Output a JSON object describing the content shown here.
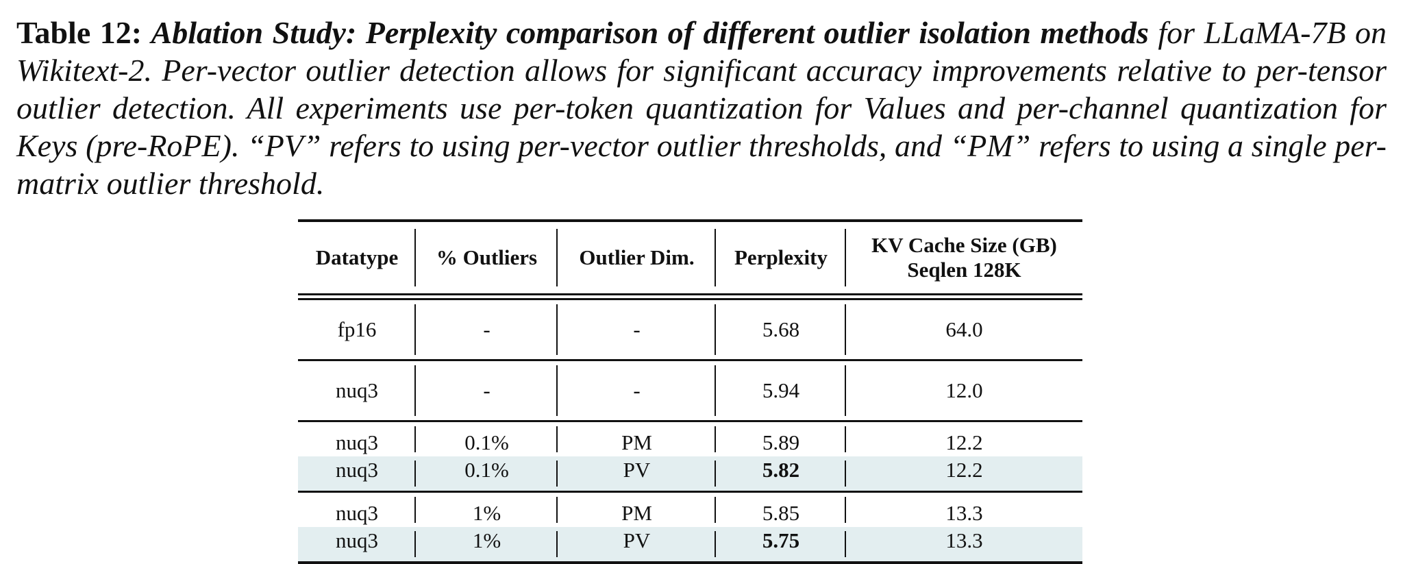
{
  "caption": {
    "label": "Table 12:",
    "title": "Ablation Study: Perplexity comparison of different outlier isolation methods",
    "text": "for LLaMA-7B on Wikitext-2. Per-vector outlier detection allows for significant accuracy improvements relative to per-tensor outlier detection. All experiments use per-token quantization for Values and per-channel quantization for Keys (pre-RoPE). “PV” refers to using per-vector outlier thresholds, and “PM” refers to using a single per-matrix outlier threshold."
  },
  "table": {
    "header": [
      [
        "Datatype"
      ],
      [
        "% Outliers"
      ],
      [
        "Outlier Dim."
      ],
      [
        "Perplexity"
      ],
      [
        "KV Cache Size (GB)",
        "Seqlen 128K"
      ]
    ],
    "groups": [
      [
        {
          "cells": [
            "fp16",
            "-",
            "-",
            "5.68",
            "64.0"
          ]
        }
      ],
      [
        {
          "cells": [
            "nuq3",
            "-",
            "-",
            "5.94",
            "12.0"
          ]
        }
      ],
      [
        {
          "cells": [
            "nuq3",
            "0.1%",
            "PM",
            "5.89",
            "12.2"
          ]
        },
        {
          "cells": [
            "nuq3",
            "0.1%",
            "PV",
            "5.82",
            "12.2"
          ],
          "highlight": true,
          "bold": [
            3
          ]
        }
      ],
      [
        {
          "cells": [
            "nuq3",
            "1%",
            "PM",
            "5.85",
            "13.3"
          ]
        },
        {
          "cells": [
            "nuq3",
            "1%",
            "PV",
            "5.75",
            "13.3"
          ],
          "highlight": true,
          "bold": [
            3
          ]
        }
      ]
    ]
  }
}
